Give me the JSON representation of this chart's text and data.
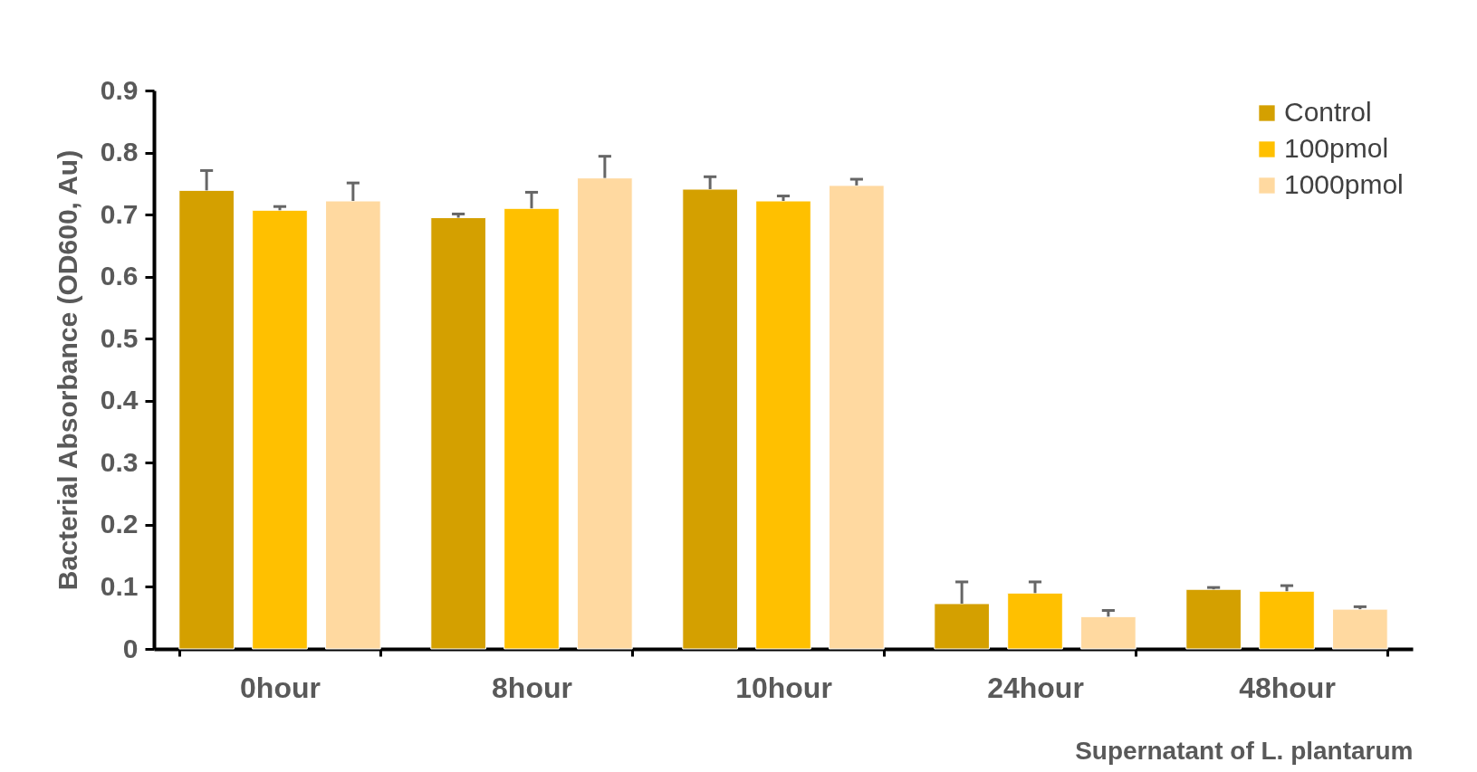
{
  "chart_data": {
    "type": "bar",
    "xlabel": "Supernatant of L. plantarum",
    "ylabel": "Bacterial Absorbance (OD600, Au)",
    "categories": [
      "0hour",
      "8hour",
      "10hour",
      "24hour",
      "48hour"
    ],
    "series": [
      {
        "name": "Control",
        "color": "#d4a000",
        "values": [
          0.739,
          0.695,
          0.741,
          0.073,
          0.096
        ],
        "errors": [
          0.032,
          0.006,
          0.02,
          0.035,
          0.003
        ]
      },
      {
        "name": "100pmol",
        "color": "#ffc000",
        "values": [
          0.707,
          0.71,
          0.722,
          0.09,
          0.093
        ],
        "errors": [
          0.006,
          0.026,
          0.008,
          0.018,
          0.009
        ]
      },
      {
        "name": "1000pmol",
        "color": "#ffd9a0",
        "values": [
          0.722,
          0.759,
          0.747,
          0.052,
          0.064
        ],
        "errors": [
          0.029,
          0.035,
          0.01,
          0.01,
          0.004
        ]
      }
    ],
    "ylim": [
      0,
      0.9
    ],
    "yticks": [
      0,
      0.1,
      0.2,
      0.3,
      0.4,
      0.5,
      0.6,
      0.7,
      0.8,
      0.9
    ],
    "grid": false,
    "legend": "top right"
  }
}
